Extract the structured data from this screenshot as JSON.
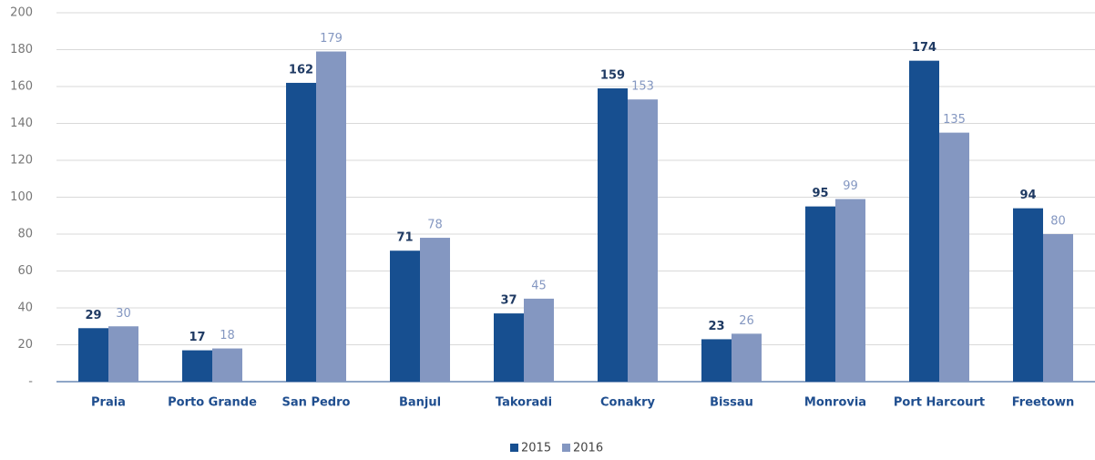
{
  "chart_data": {
    "type": "bar",
    "categories": [
      "Praia",
      "Porto Grande",
      "San Pedro",
      "Banjul",
      "Takoradi",
      "Conakry",
      "Bissau",
      "Monrovia",
      "Port Harcourt",
      "Freetown"
    ],
    "series": [
      {
        "name": "2015",
        "color": "#174f90",
        "values": [
          29,
          17,
          162,
          71,
          37,
          159,
          23,
          95,
          174,
          94
        ]
      },
      {
        "name": "2016",
        "color": "#8497c1",
        "values": [
          30,
          18,
          179,
          78,
          45,
          153,
          26,
          99,
          135,
          80
        ]
      }
    ],
    "ylim": [
      0,
      200
    ],
    "yticks": [
      {
        "value": 0,
        "label": "-"
      },
      20,
      40,
      60,
      80,
      100,
      120,
      140,
      160,
      180,
      200
    ],
    "grid": true,
    "legend": "bottom"
  }
}
